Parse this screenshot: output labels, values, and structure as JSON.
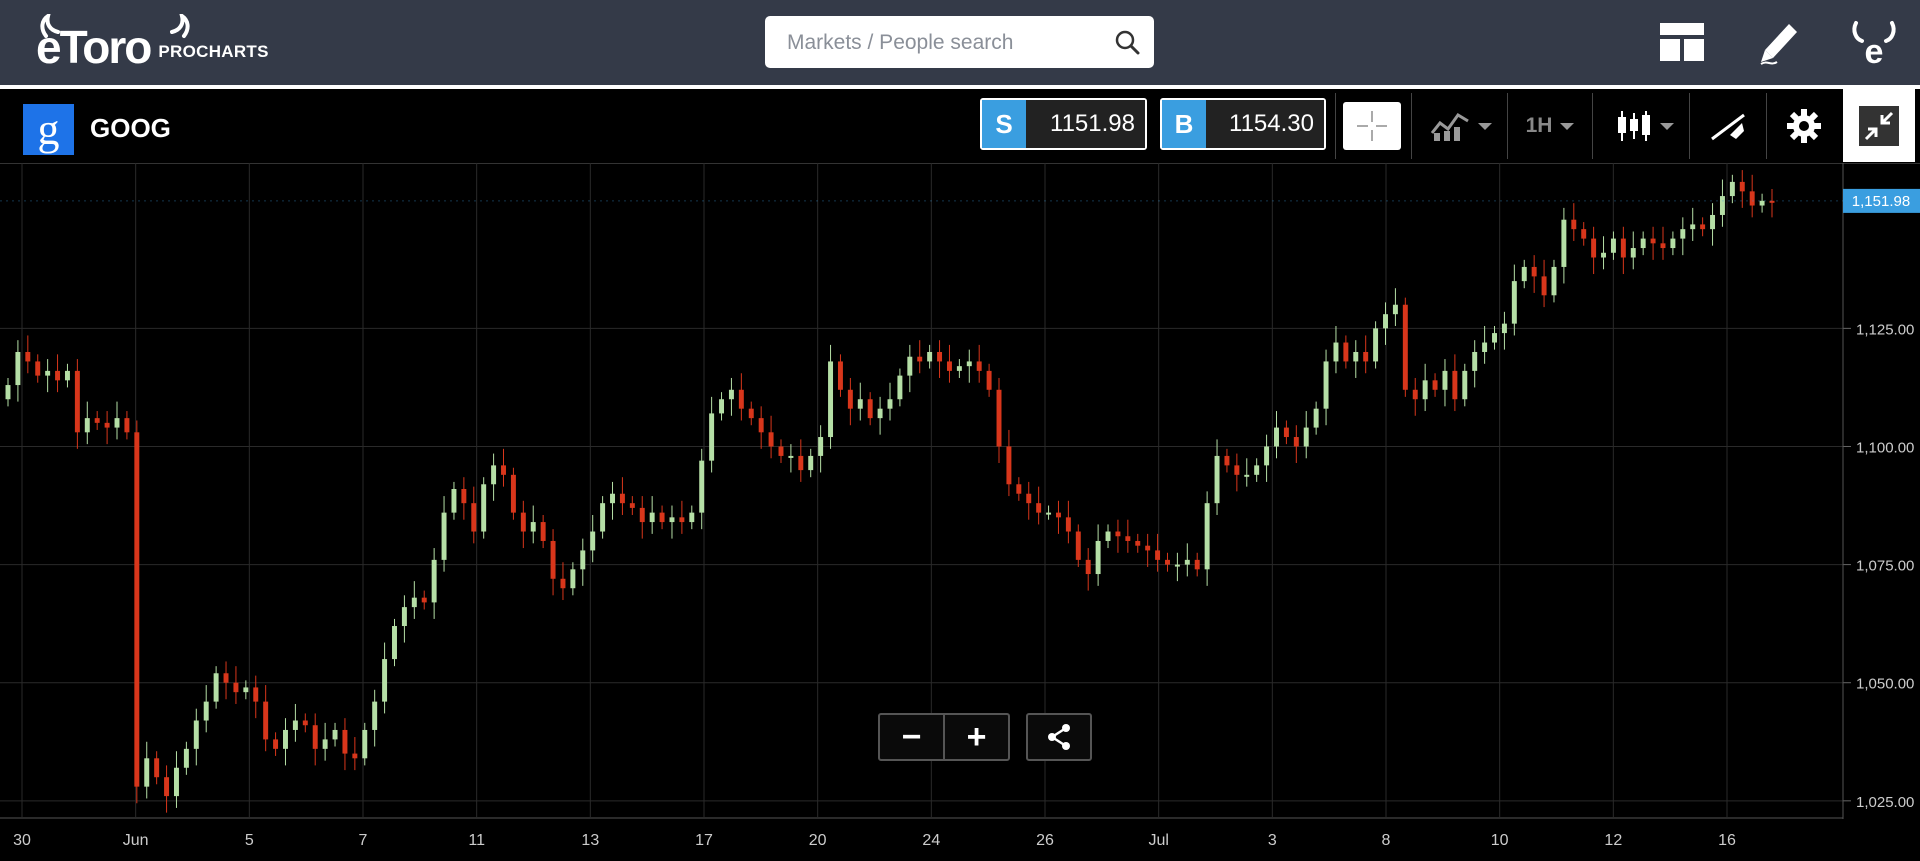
{
  "app": {
    "logo_text": "eToro",
    "logo_sub": "PROCHARTS",
    "search_placeholder": "Markets / People search"
  },
  "top_icons": [
    "layout-icon",
    "edit-pencil-icon",
    "etoro-profile-icon"
  ],
  "instrument": {
    "symbol": "GOOG",
    "logo_letter": "g",
    "sell_label": "S",
    "sell_price": "1151.98",
    "buy_label": "B",
    "buy_price": "1154.30",
    "timeframe": "1H"
  },
  "toolbar_icons": [
    "crosshair-icon",
    "indicators-icon",
    "timeframe-dropdown",
    "candlestick-type-icon",
    "drawing-tools-icon",
    "settings-gear-icon",
    "collapse-icon"
  ],
  "chart_data": {
    "type": "candlestick",
    "symbol": "GOOG",
    "interval": "1H",
    "ylim": [
      1022,
      1160
    ],
    "y_ticks": [
      "1,025.00",
      "1,050.00",
      "1,075.00",
      "1,100.00",
      "1,125.00"
    ],
    "x_tick_labels": [
      "30",
      "Jun",
      "5",
      "7",
      "11",
      "13",
      "17",
      "20",
      "24",
      "26",
      "Jul",
      "3",
      "8",
      "10",
      "12",
      "16"
    ],
    "last_price_label": "1,151.98",
    "last_price": 1151.98,
    "up_color": "#b5dfa6",
    "down_color": "#d8361b",
    "close_series": [
      1113,
      1120,
      1118,
      1115,
      1116,
      1114,
      1116,
      1103,
      1106,
      1105,
      1104,
      1106,
      1103,
      1028,
      1034,
      1030,
      1026,
      1032,
      1036,
      1042,
      1046,
      1052,
      1050,
      1048,
      1049,
      1046,
      1038,
      1036,
      1040,
      1042,
      1041,
      1036,
      1038,
      1040,
      1035,
      1034,
      1040,
      1046,
      1055,
      1062,
      1066,
      1068,
      1067,
      1076,
      1086,
      1091,
      1088,
      1082,
      1092,
      1096,
      1094,
      1086,
      1082,
      1084,
      1080,
      1072,
      1070,
      1074,
      1078,
      1082,
      1088,
      1090,
      1088,
      1087,
      1084,
      1086,
      1084,
      1085,
      1084,
      1086,
      1097,
      1107,
      1110,
      1112,
      1108,
      1106,
      1103,
      1100,
      1098,
      1098,
      1095,
      1098,
      1102,
      1118,
      1112,
      1108,
      1110,
      1106,
      1108,
      1110,
      1115,
      1119,
      1118,
      1120,
      1118,
      1116,
      1117,
      1118,
      1116,
      1112,
      1100,
      1092,
      1090,
      1088,
      1086,
      1086,
      1085,
      1082,
      1076,
      1073,
      1080,
      1082,
      1081,
      1080,
      1079,
      1078,
      1076,
      1075,
      1075,
      1076,
      1074,
      1088,
      1098,
      1096,
      1094,
      1094,
      1096,
      1100,
      1104,
      1102,
      1100,
      1104,
      1108,
      1118,
      1122,
      1118,
      1120,
      1118,
      1125,
      1128,
      1130,
      1112,
      1110,
      1114,
      1112,
      1116,
      1110,
      1116,
      1120,
      1122,
      1124,
      1126,
      1135,
      1138,
      1136,
      1132,
      1138,
      1148,
      1146,
      1144,
      1140,
      1141,
      1144,
      1140,
      1142,
      1144,
      1143,
      1142,
      1144,
      1146,
      1147,
      1146,
      1149,
      1153,
      1156,
      1154,
      1151,
      1152,
      1151.98
    ]
  },
  "controls": {
    "zoom_out": "−",
    "zoom_in": "+"
  }
}
